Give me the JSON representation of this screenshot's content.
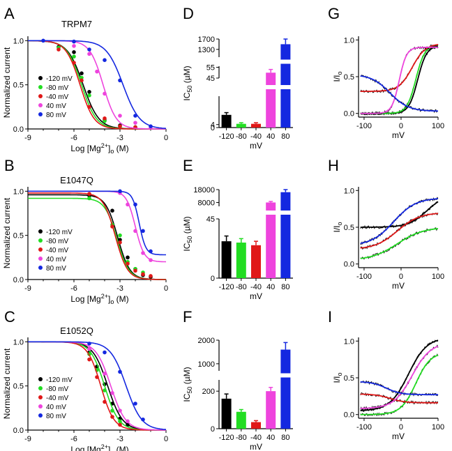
{
  "colors": {
    "k": "#000000",
    "g": "#22dd22",
    "r": "#e01818",
    "m": "#ee44dd",
    "b": "#1428e0"
  },
  "legend_labels": [
    "-120 mV",
    "-80 mV",
    "-40 mV",
    "40 mV",
    "80 mV"
  ],
  "dose": {
    "xlabel": "Log [Mg2+]o (M)",
    "ylabel": "Normalized current",
    "xticks": [
      "-9",
      "-6",
      "-3",
      "0"
    ],
    "yticks": [
      "0.0",
      "0.5",
      "1.0"
    ],
    "xlim": [
      -9,
      0
    ],
    "ylim": [
      0,
      1.05
    ]
  },
  "ic50": {
    "ylabel": "IC50 (µM)",
    "xlabel": "mV",
    "categories": [
      "-120",
      "-80",
      "-40",
      "40",
      "80"
    ]
  },
  "iv": {
    "xlabel": "mV",
    "xticks": [
      "-100",
      "0",
      "100"
    ],
    "yticks": [
      "0.0",
      "0.5",
      "1.0"
    ],
    "xlim": [
      -115,
      100
    ],
    "ylim": [
      -0.05,
      1.05
    ]
  },
  "chart_data": [
    {
      "panel": "A",
      "title": "TRPM7",
      "type": "scatter",
      "series": [
        {
          "name": "-120 mV",
          "ec50_log": -5.4,
          "hill": 0.85,
          "top": 1.0,
          "bottom": 0.0,
          "x": [
            -7,
            -6,
            -5.5,
            -5,
            -4,
            -3,
            -2
          ],
          "y": [
            0.93,
            0.87,
            0.63,
            0.42,
            0.1,
            0.04,
            0.02
          ]
        },
        {
          "name": "-80 mV",
          "ec50_log": -5.5,
          "hill": 0.9,
          "top": 1.0,
          "bottom": 0.0,
          "x": [
            -7,
            -6,
            -5.5,
            -5,
            -4,
            -3,
            -2
          ],
          "y": [
            0.92,
            0.82,
            0.58,
            0.38,
            0.09,
            0.03,
            0.02
          ]
        },
        {
          "name": "-40 mV",
          "ec50_log": -5.6,
          "hill": 0.95,
          "top": 1.0,
          "bottom": 0.0,
          "x": [
            -7,
            -6,
            -5.5,
            -5,
            -4,
            -3,
            -2
          ],
          "y": [
            0.9,
            0.75,
            0.55,
            0.25,
            0.12,
            0.03,
            0.02
          ]
        },
        {
          "name": "40 mV",
          "ec50_log": -4.1,
          "hill": 1.0,
          "top": 1.0,
          "bottom": 0.0,
          "x": [
            -6,
            -5,
            -4.5,
            -4,
            -3,
            -2,
            -1
          ],
          "y": [
            0.94,
            0.85,
            0.65,
            0.4,
            0.15,
            0.07,
            0.02
          ]
        },
        {
          "name": "80 mV",
          "ec50_log": -2.8,
          "hill": 0.8,
          "top": 1.0,
          "bottom": 0.0,
          "x": [
            -8,
            -6,
            -5,
            -4,
            -3,
            -2,
            -1
          ],
          "y": [
            1.0,
            0.99,
            0.9,
            0.78,
            0.55,
            0.15,
            0.03
          ]
        }
      ]
    },
    {
      "panel": "B",
      "title": "E1047Q",
      "type": "scatter",
      "series": [
        {
          "name": "-120 mV",
          "ec50_log": -3.15,
          "hill": 1.1,
          "top": 0.96,
          "bottom": 0.0,
          "x": [
            -5,
            -3.5,
            -3,
            -2.5,
            -2,
            -1.5,
            -1
          ],
          "y": [
            0.95,
            0.78,
            0.45,
            0.25,
            0.12,
            0.05,
            0.03
          ]
        },
        {
          "name": "-80 mV",
          "ec50_log": -3.2,
          "hill": 1.1,
          "top": 0.92,
          "bottom": 0.0,
          "x": [
            -5,
            -3.5,
            -3,
            -2.5,
            -2,
            -1.5
          ],
          "y": [
            0.92,
            0.62,
            0.5,
            0.2,
            0.12,
            0.08
          ]
        },
        {
          "name": "-40 mV",
          "ec50_log": -3.3,
          "hill": 1.1,
          "top": 0.98,
          "bottom": 0.0,
          "x": [
            -5,
            -3.5,
            -3,
            -2.5,
            -2,
            -1.5,
            -1
          ],
          "y": [
            0.97,
            0.6,
            0.42,
            0.18,
            0.1,
            0.06,
            0.04
          ]
        },
        {
          "name": "40 mV",
          "ec50_log": -2.0,
          "hill": 1.5,
          "top": 1.0,
          "bottom": 0.2,
          "x": [
            -3,
            -2.5,
            -2,
            -1.5,
            -1
          ],
          "y": [
            0.98,
            0.85,
            0.55,
            0.3,
            0.22
          ]
        },
        {
          "name": "80 mV",
          "ec50_log": -1.75,
          "hill": 2.0,
          "top": 1.0,
          "bottom": 0.28,
          "x": [
            -3,
            -2,
            -1.5,
            -1
          ],
          "y": [
            1.0,
            0.85,
            0.55,
            0.32
          ]
        }
      ]
    },
    {
      "panel": "C",
      "title": "E1052Q",
      "type": "scatter",
      "series": [
        {
          "name": "-120 mV",
          "ec50_log": -3.8,
          "hill": 0.9,
          "top": 1.0,
          "bottom": 0.0,
          "x": [
            -5,
            -4.5,
            -4,
            -3.5,
            -3,
            -2.5
          ],
          "y": [
            0.88,
            0.72,
            0.52,
            0.3,
            0.13,
            0.06
          ]
        },
        {
          "name": "-80 mV",
          "ec50_log": -4.0,
          "hill": 0.95,
          "top": 1.0,
          "bottom": 0.0,
          "x": [
            -5,
            -4.5,
            -4,
            -3.5,
            -3
          ],
          "y": [
            0.86,
            0.68,
            0.45,
            0.22,
            0.1
          ]
        },
        {
          "name": "-40 mV",
          "ec50_log": -4.25,
          "hill": 1.0,
          "top": 1.0,
          "bottom": 0.0,
          "x": [
            -5,
            -4.5,
            -4,
            -3.5,
            -3
          ],
          "y": [
            0.8,
            0.6,
            0.32,
            0.15,
            0.06
          ]
        },
        {
          "name": "40 mV",
          "ec50_log": -3.6,
          "hill": 0.9,
          "top": 1.0,
          "bottom": 0.0,
          "x": [
            -5,
            -4,
            -3.5,
            -3,
            -2.5
          ],
          "y": [
            0.92,
            0.64,
            0.42,
            0.22,
            0.1
          ]
        },
        {
          "name": "80 mV",
          "ec50_log": -2.6,
          "hill": 0.85,
          "top": 1.0,
          "bottom": 0.0,
          "x": [
            -5,
            -4,
            -3,
            -2,
            -1.5
          ],
          "y": [
            0.98,
            0.88,
            0.66,
            0.3,
            0.12
          ]
        }
      ]
    },
    {
      "panel": "D",
      "type": "bar",
      "categories": [
        "-120",
        "-80",
        "-40",
        "40",
        "80"
      ],
      "values": [
        17,
        5,
        5,
        50,
        1500
      ],
      "errors": [
        3,
        1.5,
        1.5,
        3,
        200
      ],
      "axis_break": {
        "lower_range": [
          0,
          42
        ],
        "middle_range": [
          45,
          56
        ],
        "upper_range": [
          1000,
          1700
        ]
      },
      "yticks_lower": [
        "0",
        "4"
      ],
      "yticks_upper": [
        "45",
        "55",
        "1300",
        "1700"
      ]
    },
    {
      "panel": "E",
      "type": "bar",
      "categories": [
        "-120",
        "-80",
        "-40",
        "40",
        "80"
      ],
      "values": [
        28,
        27,
        25,
        8000,
        16000
      ],
      "errors": [
        4,
        3,
        3,
        800,
        2000
      ],
      "axis_break": {
        "lower_range": [
          0,
          45
        ],
        "upper_range": [
          5000,
          18000
        ]
      },
      "yticks_lower": [
        "0",
        "45"
      ],
      "yticks_upper": [
        "8000",
        "18000"
      ]
    },
    {
      "panel": "F",
      "type": "bar",
      "categories": [
        "-120",
        "-80",
        "-40",
        "40",
        "80"
      ],
      "values": [
        160,
        90,
        35,
        200,
        1600
      ],
      "errors": [
        25,
        12,
        8,
        20,
        300
      ],
      "axis_break": {
        "lower_range": [
          0,
          260
        ],
        "upper_range": [
          700,
          2000
        ]
      },
      "yticks_lower": [
        "0",
        "200"
      ],
      "yticks_upper": [
        "1000",
        "2000"
      ]
    },
    {
      "panel": "G",
      "type": "line",
      "xlabel": "mV",
      "ylabel": "I/Io",
      "series": [
        {
          "name": "-120 mV",
          "params": {
            "a": 0.0,
            "b": 0.92,
            "v": 45,
            "k": 12,
            "c": 0.1,
            "d": -60,
            "e": 25
          }
        },
        {
          "name": "-80 mV",
          "params": {
            "a": 0.0,
            "b": 0.93,
            "v": 40,
            "k": 12
          }
        },
        {
          "name": "-40 mV",
          "params": {
            "a": 0.3,
            "b": 0.65,
            "v": 30,
            "k": 18
          }
        },
        {
          "name": "40 mV",
          "params": {
            "a": 0.0,
            "b": 0.9,
            "v": -5,
            "k": 10
          }
        },
        {
          "name": "80 mV",
          "params": {
            "a": 0.53,
            "b": -0.5,
            "v": -30,
            "k": 25
          }
        }
      ]
    },
    {
      "panel": "H",
      "type": "line",
      "xlabel": "mV",
      "ylabel": "I/Io",
      "series": [
        {
          "name": "-120 mV",
          "params": {
            "a": 0.5,
            "b": 0.45,
            "v": 70,
            "k": 25
          }
        },
        {
          "name": "-80 mV",
          "params": {
            "a": 0.05,
            "b": 0.45,
            "v": -10,
            "k": 35
          }
        },
        {
          "name": "-40 mV",
          "params": {
            "a": 0.2,
            "b": 0.5,
            "v": -10,
            "k": 30
          }
        },
        {
          "name": "80 mV",
          "params": {
            "a": 0.25,
            "b": 0.65,
            "v": -20,
            "k": 30
          }
        }
      ]
    },
    {
      "panel": "I",
      "type": "line",
      "xlabel": "mV",
      "ylabel": "I/Io",
      "series": [
        {
          "name": "-120 mV",
          "params": {
            "a": 0.05,
            "b": 1.0,
            "v": 20,
            "k": 25
          }
        },
        {
          "name": "-80 mV",
          "params": {
            "a": 0.0,
            "b": 0.85,
            "v": 40,
            "k": 20
          }
        },
        {
          "name": "-40 mV",
          "params": {
            "a": 0.28,
            "b": -0.12,
            "v": -30,
            "k": 20
          }
        },
        {
          "name": "40 mV",
          "params": {
            "a": 0.08,
            "b": 0.9,
            "v": 30,
            "k": 25
          }
        },
        {
          "name": "80 mV",
          "params": {
            "a": 0.45,
            "b": -0.18,
            "v": -40,
            "k": 20
          }
        }
      ]
    }
  ]
}
